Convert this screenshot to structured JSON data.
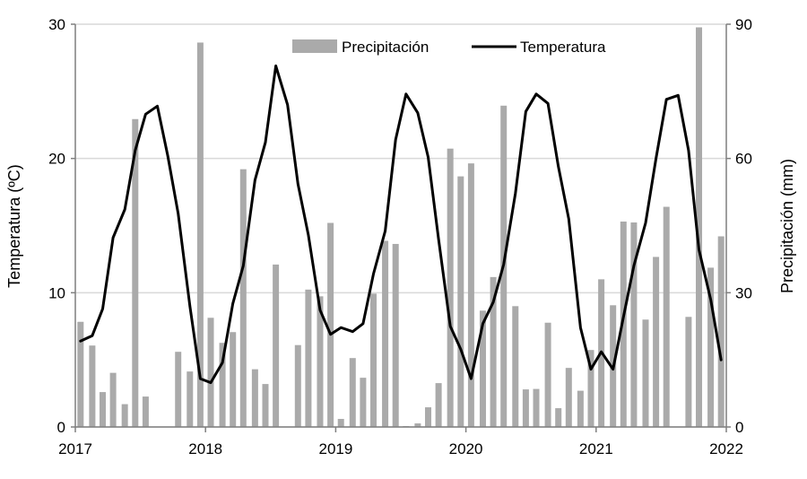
{
  "chart_data": {
    "type": "bar+line",
    "title": "",
    "legend": [
      "Precipitación",
      "Temperatura"
    ],
    "legend_position": "top-right",
    "xlabel": "",
    "ylabel_left": "Temperatura (ºC)",
    "ylabel_right": "Precipitación (mm)",
    "x_ticks": [
      "2017",
      "2018",
      "2019",
      "2020",
      "2021",
      "2022"
    ],
    "y_left_ticks": [
      "0",
      "10",
      "20",
      "30"
    ],
    "y_right_ticks": [
      "0",
      "30",
      "60",
      "90"
    ],
    "ylim_left": [
      0,
      30
    ],
    "ylim_right": [
      0,
      90
    ],
    "grid": true,
    "x": [
      2017.04,
      2017.13,
      2017.21,
      2017.29,
      2017.38,
      2017.46,
      2017.54,
      2017.63,
      2017.71,
      2017.79,
      2017.88,
      2017.96,
      2018.04,
      2018.13,
      2018.21,
      2018.29,
      2018.38,
      2018.46,
      2018.54,
      2018.63,
      2018.71,
      2018.79,
      2018.88,
      2018.96,
      2019.04,
      2019.13,
      2019.21,
      2019.29,
      2019.38,
      2019.46,
      2019.54,
      2019.63,
      2019.71,
      2019.79,
      2019.88,
      2019.96,
      2020.04,
      2020.13,
      2020.21,
      2020.29,
      2020.38,
      2020.46,
      2020.54,
      2020.63,
      2020.71,
      2020.79,
      2020.88,
      2020.96,
      2021.04,
      2021.13,
      2021.21,
      2021.29,
      2021.38,
      2021.46,
      2021.54,
      2021.63,
      2021.71,
      2021.79,
      2021.88,
      2021.96
    ],
    "series": [
      {
        "name": "Precipitación",
        "kind": "bar",
        "axis": "right",
        "color": "#aaaaaa",
        "values": [
          23.5,
          18.2,
          7.8,
          12.1,
          5.1,
          68.8,
          6.8,
          0,
          0,
          16.8,
          12.4,
          85.9,
          24.4,
          18.8,
          21.2,
          57.6,
          12.9,
          9.6,
          36.3,
          0,
          18.3,
          30.7,
          29.2,
          45.6,
          1.8,
          15.4,
          11.0,
          29.8,
          41.6,
          40.9,
          0.2,
          0.8,
          4.4,
          9.8,
          62.2,
          56.0,
          58.9,
          26.0,
          33.5,
          71.8,
          27.0,
          8.4,
          8.5,
          23.3,
          4.2,
          13.2,
          8.1,
          17.2,
          33.0,
          27.2,
          45.9,
          45.7,
          24.0,
          38.0,
          49.2,
          0,
          24.6,
          89.3,
          35.6,
          42.6
        ]
      },
      {
        "name": "Temperatura",
        "kind": "line",
        "axis": "left",
        "color": "#000000",
        "values": [
          6.4,
          6.8,
          8.8,
          14.1,
          16.2,
          20.6,
          23.3,
          23.9,
          20.2,
          15.9,
          9.0,
          3.6,
          3.3,
          4.8,
          9.2,
          12.0,
          18.4,
          21.2,
          26.9,
          24.0,
          18.1,
          14.3,
          8.7,
          6.9,
          7.4,
          7.1,
          7.7,
          11.4,
          14.6,
          21.4,
          24.8,
          23.4,
          20.1,
          14.0,
          7.5,
          5.8,
          3.6,
          7.7,
          9.3,
          12.1,
          17.4,
          23.5,
          24.8,
          24.1,
          19.4,
          15.5,
          7.4,
          4.3,
          5.6,
          4.3,
          8.2,
          12.0,
          15.2,
          20.0,
          24.4,
          24.7,
          20.6,
          13.2,
          9.5,
          5.0
        ]
      }
    ]
  }
}
